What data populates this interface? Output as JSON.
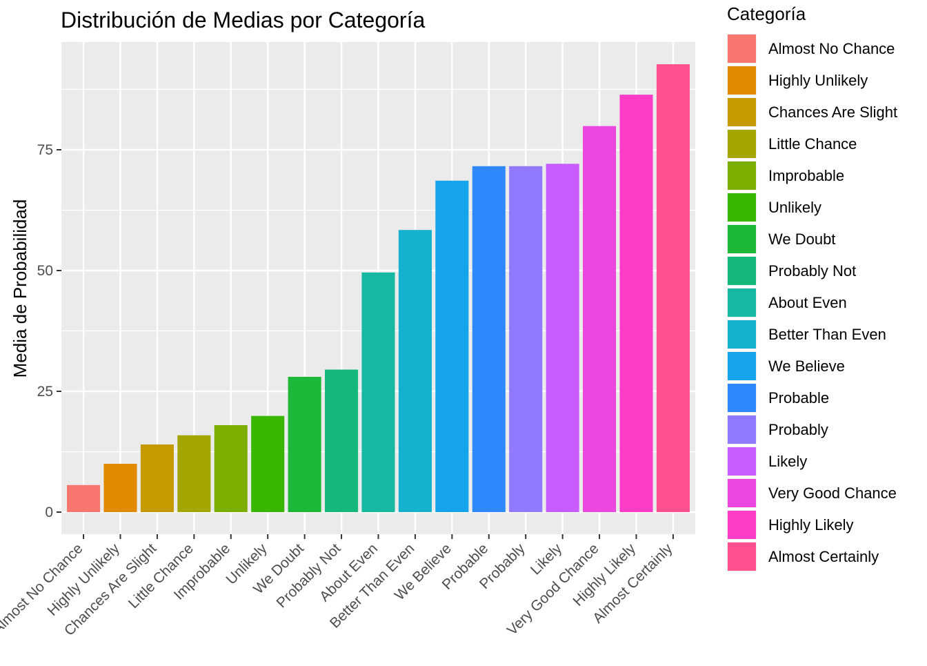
{
  "chart_data": {
    "type": "bar",
    "title": "Distribución de Medias por Categoría",
    "xlabel": "",
    "ylabel": "Media de Probabilidad",
    "ylim": [
      0,
      97.5
    ],
    "yticks": [
      0,
      25,
      50,
      75
    ],
    "grid": true,
    "legend_position": "right",
    "legend_title": "Categoría",
    "categories": [
      "Almost No Chance",
      "Highly Unlikely",
      "Chances Are Slight",
      "Little Chance",
      "Improbable",
      "Unlikely",
      "We Doubt",
      "Probably Not",
      "About Even",
      "Better Than Even",
      "We Believe",
      "Probable",
      "Probably",
      "Likely",
      "Very Good Chance",
      "Highly Likely",
      "Almost Certainly"
    ],
    "values": [
      5.6,
      10.0,
      14.0,
      15.9,
      18.0,
      19.9,
      28.0,
      29.5,
      49.6,
      58.4,
      68.6,
      71.6,
      71.6,
      72.1,
      79.9,
      86.4,
      92.7
    ],
    "colors": [
      "#F8766D",
      "#E18A00",
      "#C59900",
      "#A3A500",
      "#7CAE00",
      "#39B600",
      "#1DB838",
      "#14B87A",
      "#17B8A2",
      "#14B2CE",
      "#15A3EC",
      "#2E89FF",
      "#9078FF",
      "#C85CFF",
      "#EB47DF",
      "#FE3CC7",
      "#FF4F8E"
    ]
  }
}
